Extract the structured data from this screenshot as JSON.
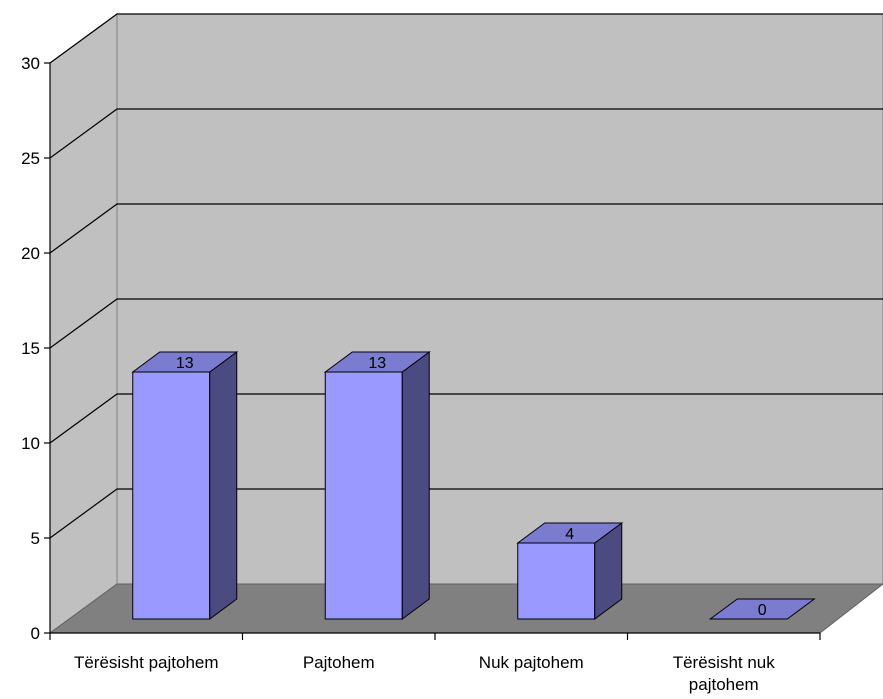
{
  "chart_data": {
    "type": "bar",
    "style": "3d-column",
    "categories": [
      "Tërësisht pajtohem",
      "Pajtohem",
      "Nuk pajtohem",
      "Tërësisht nuk pajtohem"
    ],
    "values": [
      13,
      13,
      4,
      0
    ],
    "data_labels": [
      "13",
      "13",
      "4",
      "0"
    ],
    "ylim": [
      0,
      30
    ],
    "yticks": [
      0,
      5,
      10,
      15,
      20,
      25,
      30
    ],
    "ytick_labels": [
      "0",
      "5",
      "10",
      "15",
      "20",
      "25",
      "30"
    ],
    "grid": true,
    "legend": "none",
    "colors": {
      "bar_front": "#9999ff",
      "bar_side": "#4b4b82",
      "bar_top": "#7b7bcf",
      "wall": "#c0c0c0",
      "floor": "#808080",
      "gridline": "#000000"
    }
  }
}
